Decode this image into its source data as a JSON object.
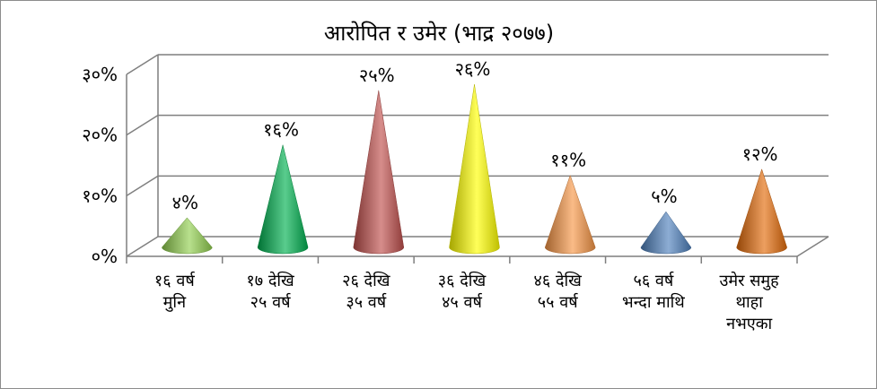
{
  "chart_data": {
    "type": "bar",
    "shape": "cone",
    "title": "आरोपित र उमेर (भाद्र २०७७)",
    "xlabel": "",
    "ylabel": "",
    "ylim": [
      0,
      30
    ],
    "y_ticks": [
      "०%",
      "१०%",
      "२०%",
      "३०%"
    ],
    "grid": true,
    "legend": "none",
    "categories": [
      "१६ वर्ष मुनि",
      "१७ देखि २५ वर्ष",
      "२६ देखि ३५ वर्ष",
      "३६ देखि ४५ वर्ष",
      "४६ देखि ५५ वर्ष",
      "५६ वर्ष भन्दा माथि",
      "उमेर समुह थाहा नभएका"
    ],
    "category_lines": [
      [
        "१६ वर्ष",
        "मुनि"
      ],
      [
        "१७ देखि",
        "२५ वर्ष"
      ],
      [
        "२६ देखि",
        "३५ वर्ष"
      ],
      [
        "३६ देखि",
        "४५ वर्ष"
      ],
      [
        "४६ देखि",
        "५५ वर्ष"
      ],
      [
        "५६ वर्ष",
        "भन्दा माथि"
      ],
      [
        "उमेर समुह",
        "थाहा",
        "नभएका"
      ]
    ],
    "values": [
      4,
      16,
      25,
      26,
      11,
      5,
      12
    ],
    "data_labels": [
      "४%",
      "१६%",
      "२५%",
      "२६%",
      "११%",
      "५%",
      "१२%"
    ],
    "colors": [
      "#92d050",
      "#00b050",
      "#c0504d",
      "#ffff00",
      "#f79646",
      "#4f81bd",
      "#e46c0a"
    ]
  }
}
